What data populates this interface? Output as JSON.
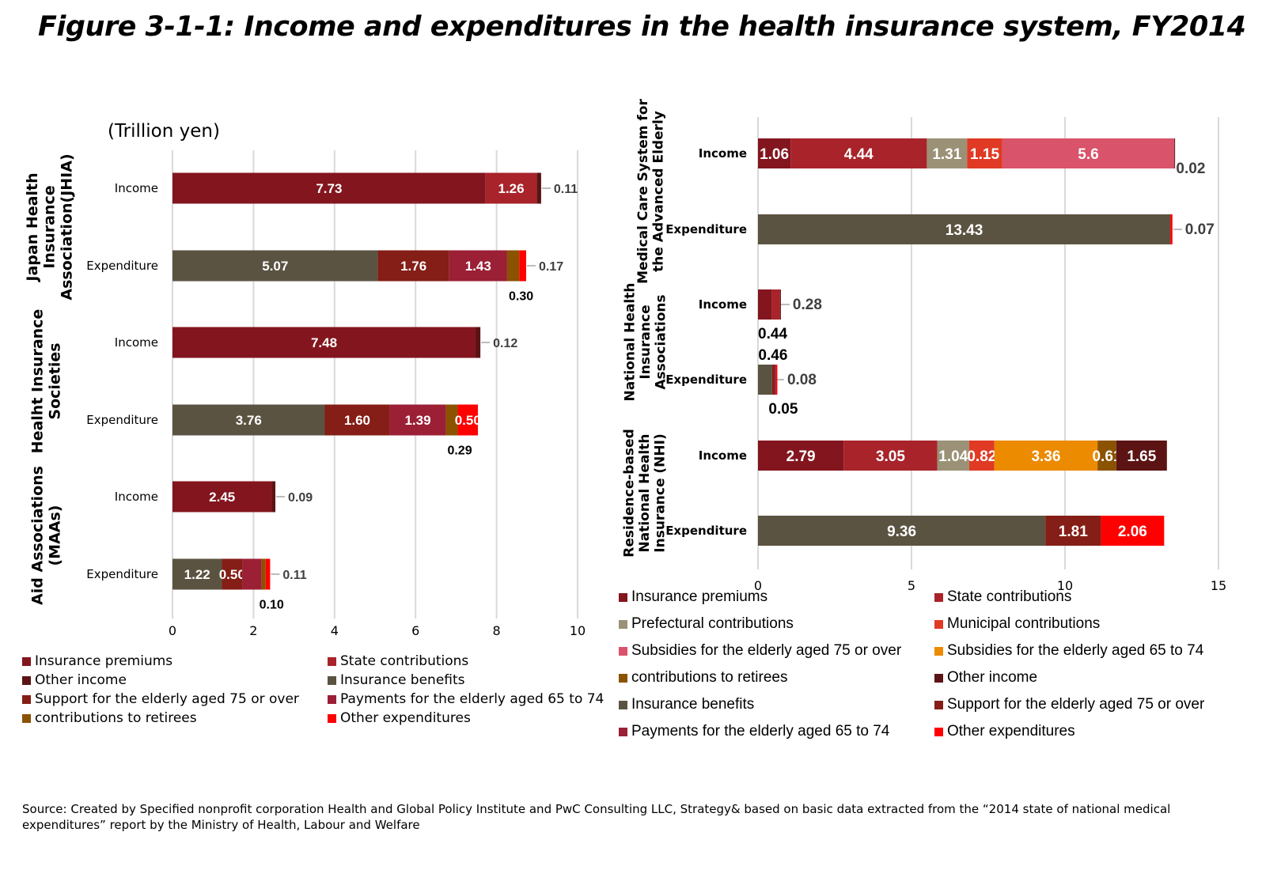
{
  "title": "Figure 3-1-1: Income and expenditures in the health insurance system, FY2014",
  "unit": "(Trillion yen)",
  "source": "Source: Created by Specified nonprofit corporation Health and Global Policy Institute and PwC Consulting LLC, Strategy& based on basic data extracted from the “2014 state of national medical expenditures” report by the Ministry of Health, Labour and Welfare",
  "colors": {
    "Insurance premiums": "#83151e",
    "State contributions": "#a8232a",
    "Other income": "#5c1314",
    "Insurance benefits": "#5b5341",
    "Support for the elderly aged 75 or over": "#841e16",
    "Payments for the elderly aged 65 to 74": "#9b1f35",
    "contributions to retirees": "#8b5200",
    "Other expenditures": "#ff0000",
    "Prefectural contributions": "#9b9176",
    "Municipal contributions": "#e03a24",
    "Subsidies for the elderly aged 75 or over": "#d9536a",
    "Subsidies for the elderly aged 65 to 74": "#ec8a00"
  },
  "chart_data": [
    {
      "type": "bar",
      "orientation": "horizontal",
      "stacked": true,
      "xlim": [
        0,
        10
      ],
      "xticks": [
        "0",
        "2",
        "4",
        "6",
        "8",
        "10"
      ],
      "unit": "(Trillion yen)",
      "grid": true,
      "legend": "bottom",
      "legend_entries": [
        "Insurance premiums",
        "State contributions",
        "Other income",
        "Insurance benefits",
        "Support for the elderly aged 75 or over",
        "Payments for the elderly aged 65 to 74",
        "contributions to retirees",
        "Other expenditures"
      ],
      "groups": [
        {
          "name": "Japan Health Insurance Association(JHIA)",
          "name_lines": [
            "Japan Health",
            "Insurance",
            "Association(JHIA)"
          ],
          "rows": [
            {
              "label": "Income",
              "segments": [
                {
                  "series": "Insurance premiums",
                  "value": 7.73,
                  "text": "7.73",
                  "pos": "inside"
                },
                {
                  "series": "State contributions",
                  "value": 1.26,
                  "text": "1.26",
                  "pos": "inside"
                },
                {
                  "series": "Other income",
                  "value": 0.11,
                  "text": "0.11",
                  "pos": "right"
                }
              ]
            },
            {
              "label": "Expenditure",
              "segments": [
                {
                  "series": "Insurance benefits",
                  "value": 5.07,
                  "text": "5.07",
                  "pos": "inside"
                },
                {
                  "series": "Support for the elderly aged 75 or over",
                  "value": 1.76,
                  "text": "1.76",
                  "pos": "inside"
                },
                {
                  "series": "Payments for the elderly aged 65 to 74",
                  "value": 1.43,
                  "text": "1.43",
                  "pos": "inside"
                },
                {
                  "series": "contributions to retirees",
                  "value": 0.3,
                  "text": "0.30",
                  "pos": "below"
                },
                {
                  "series": "Other expenditures",
                  "value": 0.17,
                  "text": "0.17",
                  "pos": "right"
                }
              ]
            }
          ]
        },
        {
          "name": "Healht Insurance Societies",
          "name_lines": [
            "Healht Insurance",
            "Societies"
          ],
          "rows": [
            {
              "label": "Income",
              "segments": [
                {
                  "series": "Insurance premiums",
                  "value": 7.48,
                  "text": "7.48",
                  "pos": "inside"
                },
                {
                  "series": "Other income",
                  "value": 0.12,
                  "text": "0.12",
                  "pos": "right"
                }
              ]
            },
            {
              "label": "Expenditure",
              "segments": [
                {
                  "series": "Insurance benefits",
                  "value": 3.76,
                  "text": "3.76",
                  "pos": "inside"
                },
                {
                  "series": "Support for the elderly aged 75 or over",
                  "value": 1.6,
                  "text": "1.60",
                  "pos": "inside"
                },
                {
                  "series": "Payments for the elderly aged 65 to 74",
                  "value": 1.39,
                  "text": "1.39",
                  "pos": "inside"
                },
                {
                  "series": "contributions to retirees",
                  "value": 0.29,
                  "text": "0.29",
                  "pos": "below"
                },
                {
                  "series": "Other expenditures",
                  "value": 0.5,
                  "text": "0.50",
                  "pos": "inside"
                }
              ]
            }
          ]
        },
        {
          "name": "Aid Associations (MAAs)",
          "name_lines": [
            "Aid Associations",
            "(MAAs)"
          ],
          "rows": [
            {
              "label": "Income",
              "segments": [
                {
                  "series": "Insurance premiums",
                  "value": 2.45,
                  "text": "2.45",
                  "pos": "inside"
                },
                {
                  "series": "Other income",
                  "value": 0.09,
                  "text": "0.09",
                  "pos": "right"
                }
              ]
            },
            {
              "label": "Expenditure",
              "segments": [
                {
                  "series": "Insurance benefits",
                  "value": 1.22,
                  "text": "1.22",
                  "pos": "inside"
                },
                {
                  "series": "Support for the elderly aged 75 or over",
                  "value": 0.5,
                  "text": "0.50",
                  "pos": "inside"
                },
                {
                  "series": "Payments for the elderly aged 65 to 74",
                  "value": 0.48,
                  "text": "",
                  "pos": "none"
                },
                {
                  "series": "contributions to retirees",
                  "value": 0.1,
                  "text": "0.10",
                  "pos": "below"
                },
                {
                  "series": "Other expenditures",
                  "value": 0.11,
                  "text": "0.11",
                  "pos": "right"
                }
              ]
            }
          ]
        }
      ]
    },
    {
      "type": "bar",
      "orientation": "horizontal",
      "stacked": true,
      "xlim": [
        0,
        15
      ],
      "xticks": [
        "0",
        "5",
        "10",
        "15"
      ],
      "grid": true,
      "legend": "bottom",
      "legend_entries": [
        "Insurance premiums",
        "State contributions",
        "Prefectural contributions",
        "Municipal contributions",
        "Subsidies for the elderly aged 75 or over",
        "Subsidies for the elderly aged 65 to 74",
        "contributions to retirees",
        "Other income",
        "Insurance benefits",
        "Support for the elderly aged 75 or over",
        "Payments for the elderly aged 65 to 74",
        "Other expenditures"
      ],
      "groups": [
        {
          "name": "Medical Care System for the Advanced Elderly",
          "name_lines": [
            "Medical Care System for",
            "the Advanced Elderly"
          ],
          "rows": [
            {
              "label": "Income",
              "segments": [
                {
                  "series": "Insurance premiums",
                  "value": 1.06,
                  "text": "1.06",
                  "pos": "inside"
                },
                {
                  "series": "State contributions",
                  "value": 4.44,
                  "text": "4.44",
                  "pos": "inside"
                },
                {
                  "series": "Prefectural contributions",
                  "value": 1.31,
                  "text": "1.31",
                  "pos": "inside"
                },
                {
                  "series": "Municipal contributions",
                  "value": 1.15,
                  "text": "1.15",
                  "pos": "inside"
                },
                {
                  "series": "Subsidies for the elderly aged 75 or over",
                  "value": 5.6,
                  "text": "5.6",
                  "pos": "inside"
                },
                {
                  "series": "Other income",
                  "value": 0.02,
                  "text": "0.02",
                  "pos": "belowright"
                }
              ]
            },
            {
              "label": "Expenditure",
              "segments": [
                {
                  "series": "Insurance benefits",
                  "value": 13.43,
                  "text": "13.43",
                  "pos": "inside"
                },
                {
                  "series": "Other expenditures",
                  "value": 0.07,
                  "text": "0.07",
                  "pos": "right"
                }
              ]
            }
          ]
        },
        {
          "name": "National Health Insurance Associations",
          "name_lines": [
            "National Health",
            "Insurance",
            "Associations"
          ],
          "rows": [
            {
              "label": "Income",
              "segments": [
                {
                  "series": "Insurance premiums",
                  "value": 0.44,
                  "text": "0.44",
                  "pos": "below"
                },
                {
                  "series": "State contributions",
                  "value": 0.28,
                  "text": "0.28",
                  "pos": "right"
                },
                {
                  "series": "Other income",
                  "value": 0.02,
                  "text": "",
                  "pos": "none"
                }
              ]
            },
            {
              "label": "Expenditure",
              "segments": [
                {
                  "series": "Insurance benefits",
                  "value": 0.46,
                  "text": "0.46",
                  "pos": "above"
                },
                {
                  "series": "Support for the elderly aged 75 or over",
                  "value": 0.08,
                  "text": "0.08",
                  "pos": "right"
                },
                {
                  "series": "Payments for the elderly aged 65 to 74",
                  "value": 0.05,
                  "text": "0.05",
                  "pos": "below"
                },
                {
                  "series": "Other expenditures",
                  "value": 0.04,
                  "text": "",
                  "pos": "none"
                }
              ]
            }
          ]
        },
        {
          "name": "Residence-based National Health Insurance (NHI)",
          "name_lines": [
            "Residence-based",
            "National Health",
            "Insurance (NHI)"
          ],
          "rows": [
            {
              "label": "Income",
              "segments": [
                {
                  "series": "Insurance premiums",
                  "value": 2.79,
                  "text": "2.79",
                  "pos": "inside"
                },
                {
                  "series": "State contributions",
                  "value": 3.05,
                  "text": "3.05",
                  "pos": "inside"
                },
                {
                  "series": "Prefectural contributions",
                  "value": 1.04,
                  "text": "1.04",
                  "pos": "inside"
                },
                {
                  "series": "Municipal contributions",
                  "value": 0.82,
                  "text": "0.82",
                  "pos": "inside"
                },
                {
                  "series": "Subsidies for the elderly aged 65 to 74",
                  "value": 3.36,
                  "text": "3.36",
                  "pos": "inside"
                },
                {
                  "series": "contributions to retirees",
                  "value": 0.61,
                  "text": "0.61",
                  "pos": "inside"
                },
                {
                  "series": "Other income",
                  "value": 1.65,
                  "text": "1.65",
                  "pos": "inside"
                }
              ]
            },
            {
              "label": "Expenditure",
              "segments": [
                {
                  "series": "Insurance benefits",
                  "value": 9.36,
                  "text": "9.36",
                  "pos": "inside"
                },
                {
                  "series": "Support for the elderly aged 75 or over",
                  "value": 1.81,
                  "text": "1.81",
                  "pos": "inside"
                },
                {
                  "series": "Other expenditures",
                  "value": 2.06,
                  "text": "2.06",
                  "pos": "inside"
                }
              ]
            }
          ]
        }
      ]
    }
  ]
}
